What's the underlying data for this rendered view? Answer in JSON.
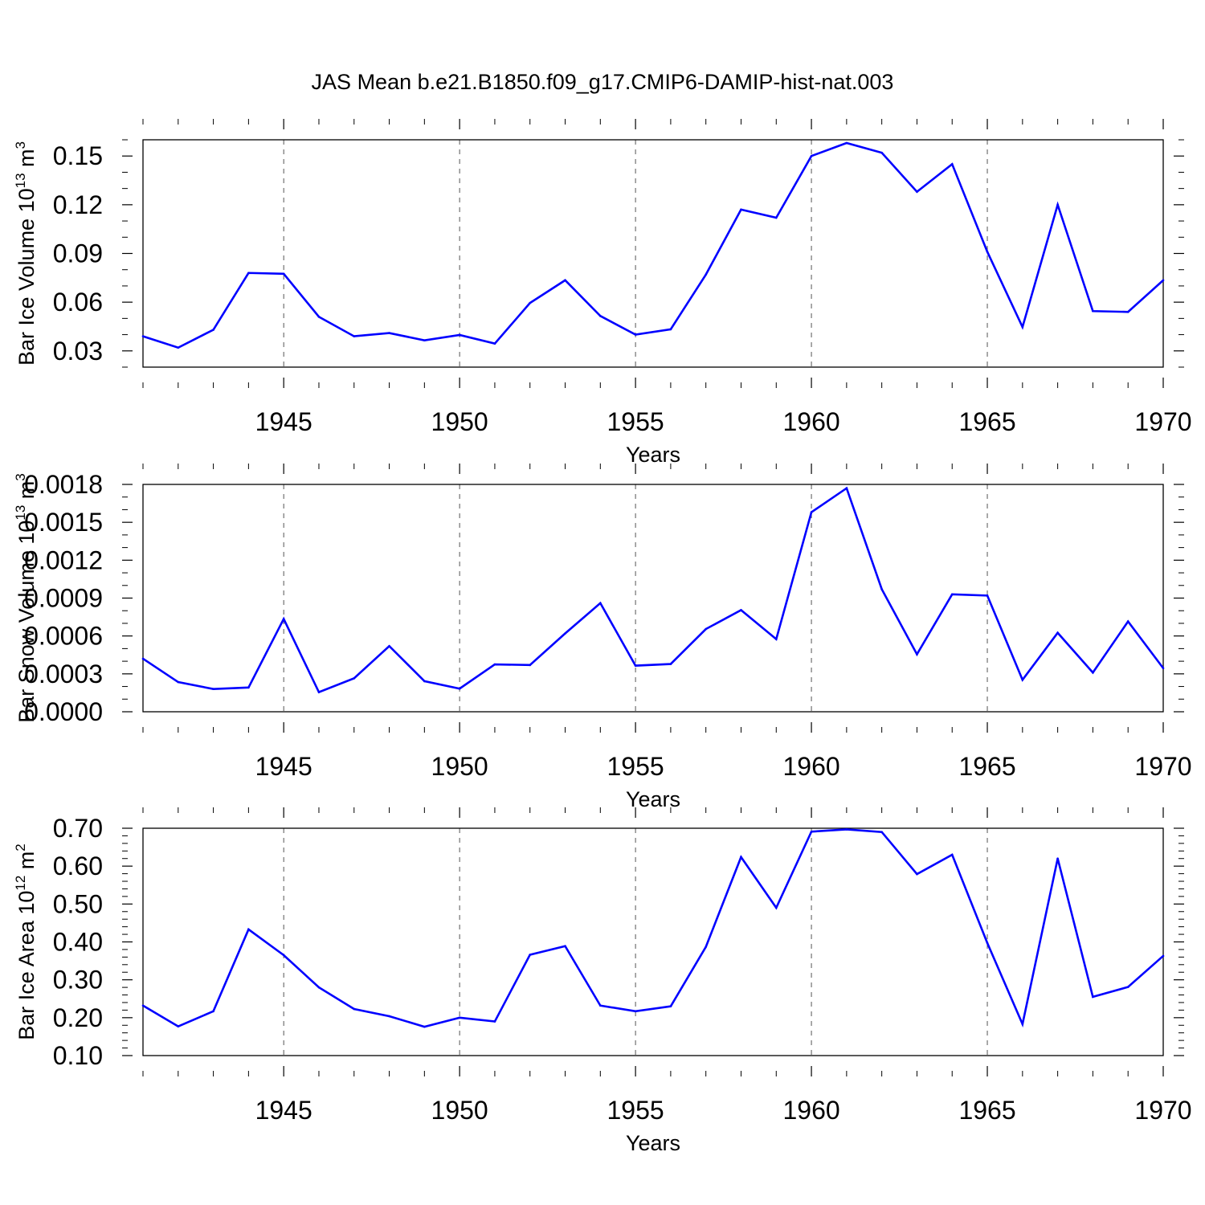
{
  "title": "JAS Mean b.e21.B1850.f09_g17.CMIP6-DAMIP-hist-nat.003",
  "colors": {
    "line": "#0000ff",
    "grid": "#555555",
    "axis": "#000000"
  },
  "chart_data": [
    {
      "type": "line",
      "ylabel": "Bar Ice Volume 10",
      "ylabel_exp": "13",
      "ylabel_unit": " m",
      "ylabel_unit_exp": "3",
      "xlabel": "Years",
      "xlim": [
        1941,
        1970
      ],
      "ylim": [
        0.02,
        0.16
      ],
      "xticks": [
        1945,
        1950,
        1955,
        1960,
        1965,
        1970
      ],
      "xtick_labels": [
        "1945",
        "1950",
        "1955",
        "1960",
        "1965",
        "1970"
      ],
      "yticks": [
        0.03,
        0.06,
        0.09,
        0.12,
        0.15
      ],
      "ytick_labels": [
        "0.03",
        "0.06",
        "0.09",
        "0.12",
        "0.15"
      ],
      "y_minor_step": 0.01,
      "grid": "vertical dashed at major x ticks",
      "x": [
        1941,
        1942,
        1943,
        1944,
        1945,
        1946,
        1947,
        1948,
        1949,
        1950,
        1951,
        1952,
        1953,
        1954,
        1955,
        1956,
        1957,
        1958,
        1959,
        1960,
        1961,
        1962,
        1963,
        1964,
        1965,
        1966,
        1967,
        1968,
        1969,
        1970
      ],
      "values": [
        0.039,
        0.032,
        0.043,
        0.078,
        0.0775,
        0.051,
        0.039,
        0.041,
        0.0365,
        0.0398,
        0.0345,
        0.0595,
        0.0735,
        0.0515,
        0.04,
        0.0433,
        0.077,
        0.117,
        0.112,
        0.15,
        0.158,
        0.152,
        0.128,
        0.145,
        0.091,
        0.0447,
        0.12,
        0.0545,
        0.054,
        0.0735
      ]
    },
    {
      "type": "line",
      "ylabel": "Bar Snow Volume 10",
      "ylabel_exp": "13",
      "ylabel_unit": " m",
      "ylabel_unit_exp": "3",
      "xlabel": "Years",
      "xlim": [
        1941,
        1970
      ],
      "ylim": [
        0,
        0.0018
      ],
      "xticks": [
        1945,
        1950,
        1955,
        1960,
        1965,
        1970
      ],
      "xtick_labels": [
        "1945",
        "1950",
        "1955",
        "1960",
        "1965",
        "1970"
      ],
      "yticks": [
        0,
        0.0003,
        0.0006,
        0.0009,
        0.0012,
        0.0015,
        0.0018
      ],
      "ytick_labels": [
        "0.0000",
        "0.0003",
        "0.0006",
        "0.0009",
        "0.0012",
        "0.0015",
        "0.0018"
      ],
      "y_minor_step": 0.0001,
      "grid": "vertical dashed at major x ticks",
      "x": [
        1941,
        1942,
        1943,
        1944,
        1945,
        1946,
        1947,
        1948,
        1949,
        1950,
        1951,
        1952,
        1953,
        1954,
        1955,
        1956,
        1957,
        1958,
        1959,
        1960,
        1961,
        1962,
        1963,
        1964,
        1965,
        1966,
        1967,
        1968,
        1969,
        1970
      ],
      "values": [
        0.00042,
        0.000235,
        0.00018,
        0.000192,
        0.000735,
        0.000155,
        0.000265,
        0.00052,
        0.000242,
        0.000183,
        0.000375,
        0.00037,
        0.00062,
        0.00086,
        0.000365,
        0.000378,
        0.000655,
        0.000805,
        0.000575,
        0.00158,
        0.00177,
        0.00097,
        0.000455,
        0.00093,
        0.00092,
        0.000253,
        0.000625,
        0.00031,
        0.000715,
        0.000345
      ]
    },
    {
      "type": "line",
      "ylabel": "Bar Ice Area 10",
      "ylabel_exp": "12",
      "ylabel_unit": " m",
      "ylabel_unit_exp": "2",
      "xlabel": "Years",
      "xlim": [
        1941,
        1970
      ],
      "ylim": [
        0.1,
        0.7
      ],
      "xticks": [
        1945,
        1950,
        1955,
        1960,
        1965,
        1970
      ],
      "xtick_labels": [
        "1945",
        "1950",
        "1955",
        "1960",
        "1965",
        "1970"
      ],
      "yticks": [
        0.1,
        0.2,
        0.3,
        0.4,
        0.5,
        0.6,
        0.7
      ],
      "ytick_labels": [
        "0.10",
        "0.20",
        "0.30",
        "0.40",
        "0.50",
        "0.60",
        "0.70"
      ],
      "y_minor_step": 0.02,
      "grid": "vertical dashed at major x ticks",
      "x": [
        1941,
        1942,
        1943,
        1944,
        1945,
        1946,
        1947,
        1948,
        1949,
        1950,
        1951,
        1952,
        1953,
        1954,
        1955,
        1956,
        1957,
        1958,
        1959,
        1960,
        1961,
        1962,
        1963,
        1964,
        1965,
        1966,
        1967,
        1968,
        1969,
        1970
      ],
      "values": [
        0.232,
        0.177,
        0.217,
        0.433,
        0.365,
        0.28,
        0.223,
        0.204,
        0.176,
        0.2,
        0.19,
        0.366,
        0.389,
        0.232,
        0.217,
        0.23,
        0.387,
        0.624,
        0.49,
        0.691,
        0.697,
        0.69,
        0.579,
        0.63,
        0.397,
        0.183,
        0.62,
        0.255,
        0.281,
        0.363
      ]
    }
  ]
}
